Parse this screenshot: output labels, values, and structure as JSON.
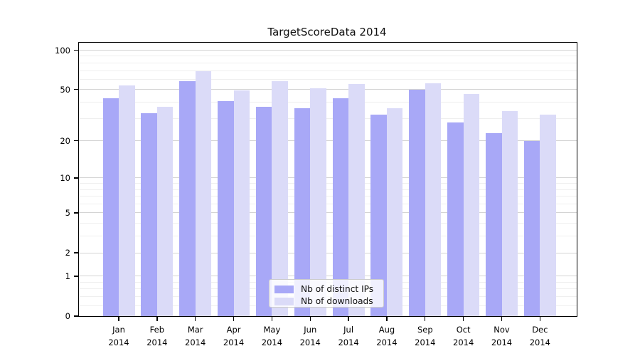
{
  "title": "TargetScoreData 2014",
  "chart_data": {
    "type": "bar",
    "title": "TargetScoreData 2014",
    "categories": [
      {
        "month": "Jan",
        "year": "2014"
      },
      {
        "month": "Feb",
        "year": "2014"
      },
      {
        "month": "Mar",
        "year": "2014"
      },
      {
        "month": "Apr",
        "year": "2014"
      },
      {
        "month": "May",
        "year": "2014"
      },
      {
        "month": "Jun",
        "year": "2014"
      },
      {
        "month": "Jul",
        "year": "2014"
      },
      {
        "month": "Aug",
        "year": "2014"
      },
      {
        "month": "Sep",
        "year": "2014"
      },
      {
        "month": "Oct",
        "year": "2014"
      },
      {
        "month": "Nov",
        "year": "2014"
      },
      {
        "month": "Dec",
        "year": "2014"
      }
    ],
    "series": [
      {
        "name": "Nb of distinct IPs",
        "color": "#a8a8f7",
        "values": [
          43,
          33,
          58,
          41,
          37,
          36,
          43,
          32,
          50,
          28,
          23,
          20
        ]
      },
      {
        "name": "Nb of downloads",
        "color": "#dbdbf8",
        "values": [
          54,
          37,
          69,
          49,
          58,
          51,
          55,
          36,
          56,
          46,
          34,
          32
        ]
      }
    ],
    "xlabel": "",
    "ylabel": "",
    "yscale": "symlog (log1p)",
    "ylim": [
      0,
      114
    ],
    "yticks": [
      0,
      1,
      2,
      5,
      10,
      20,
      50,
      100
    ],
    "minor_yticks": [
      0.2,
      0.4,
      0.6,
      0.8,
      3,
      4,
      6,
      7,
      8,
      9,
      30,
      40,
      60,
      70,
      80,
      90
    ],
    "grid": true,
    "legend_position": "lower center"
  },
  "legend": {
    "entries": [
      {
        "label": "Nb of distinct IPs"
      },
      {
        "label": "Nb of downloads"
      }
    ]
  },
  "colors": {
    "series_ips": "#a8a8f7",
    "series_downloads": "#dbdbf8",
    "grid_major": "#d4d4d4",
    "grid_minor": "#efefef",
    "spine": "#000000"
  }
}
